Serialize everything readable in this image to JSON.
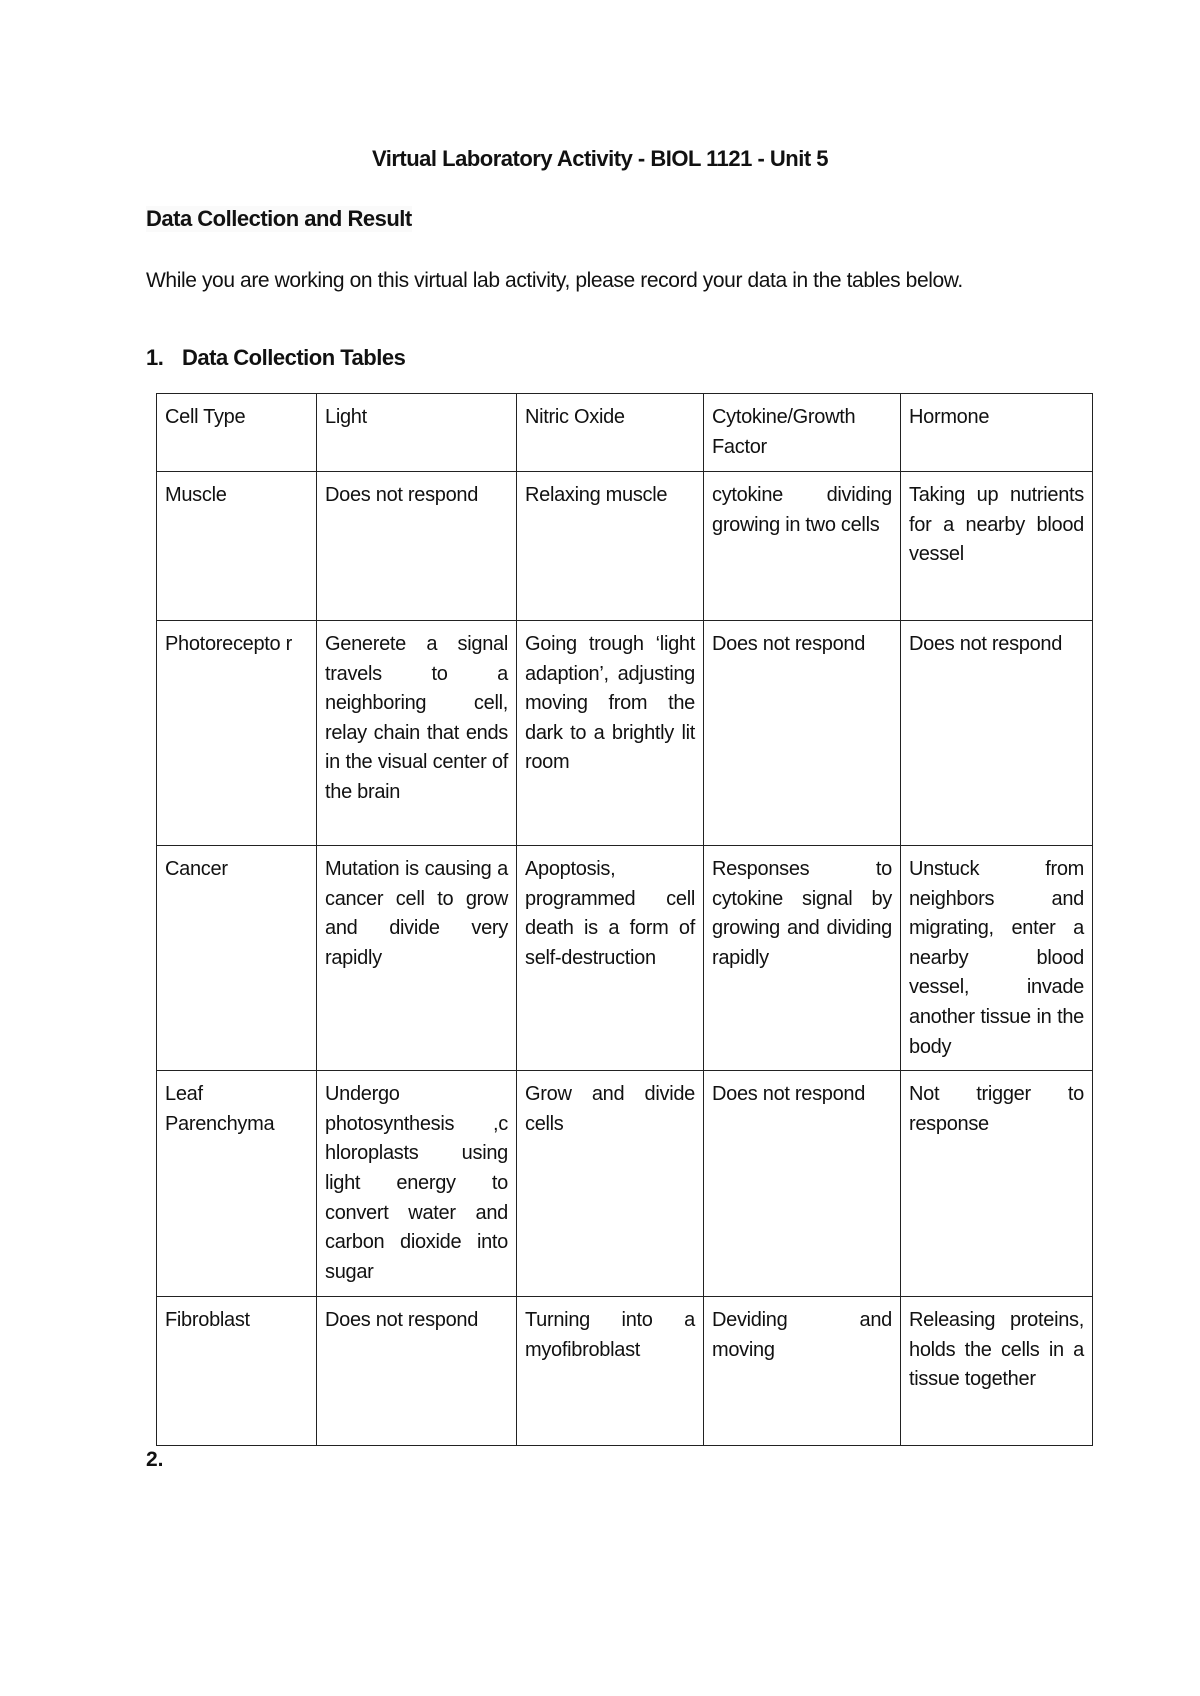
{
  "title": "Virtual Laboratory Activity - BIOL 1121 - Unit 5",
  "heading": "Data Collection and Result",
  "intro": "While you are working on this virtual lab activity, please record your data in the tables below.",
  "section1": {
    "number": "1.",
    "label": "Data Collection Tables"
  },
  "section2": {
    "number": "2."
  },
  "table": {
    "headers": [
      "Cell Type",
      "Light",
      "Nitric Oxide",
      "Cytokine/Growth Factor",
      "Hormone"
    ],
    "rows": [
      [
        "Muscle",
        "Does not respond",
        "Relaxing muscle",
        "cytokine dividing growing in two cells",
        "Taking up nutrients for a nearby blood vessel"
      ],
      [
        "Photorecepto r",
        "Generete a signal travels to a neighboring cell, relay chain that ends in the visual center of the brain",
        "Going trough ‘light adaption’, adjusting moving from the dark to a brightly lit room",
        "Does not respond",
        "Does not respond"
      ],
      [
        "Cancer",
        "Mutation is causing a cancer cell to grow and divide very rapidly",
        "Apoptosis, programmed cell death is a form of self-destruction",
        "Responses to cytokine signal by growing and dividing rapidly",
        "Unstuck from neighbors and migrating, enter a nearby blood vessel, invade another tissue in the body"
      ],
      [
        "Leaf Parenchyma",
        "Undergo photosynthesis ,c hloroplasts using light energy to convert water and carbon dioxide into sugar",
        "Grow and divide cells",
        "Does not respond",
        "Not trigger to response"
      ],
      [
        "Fibroblast",
        "Does not respond",
        "Turning into a myofibroblast",
        "Deviding and moving",
        "Releasing proteins, holds the cells in a tissue together"
      ]
    ]
  }
}
